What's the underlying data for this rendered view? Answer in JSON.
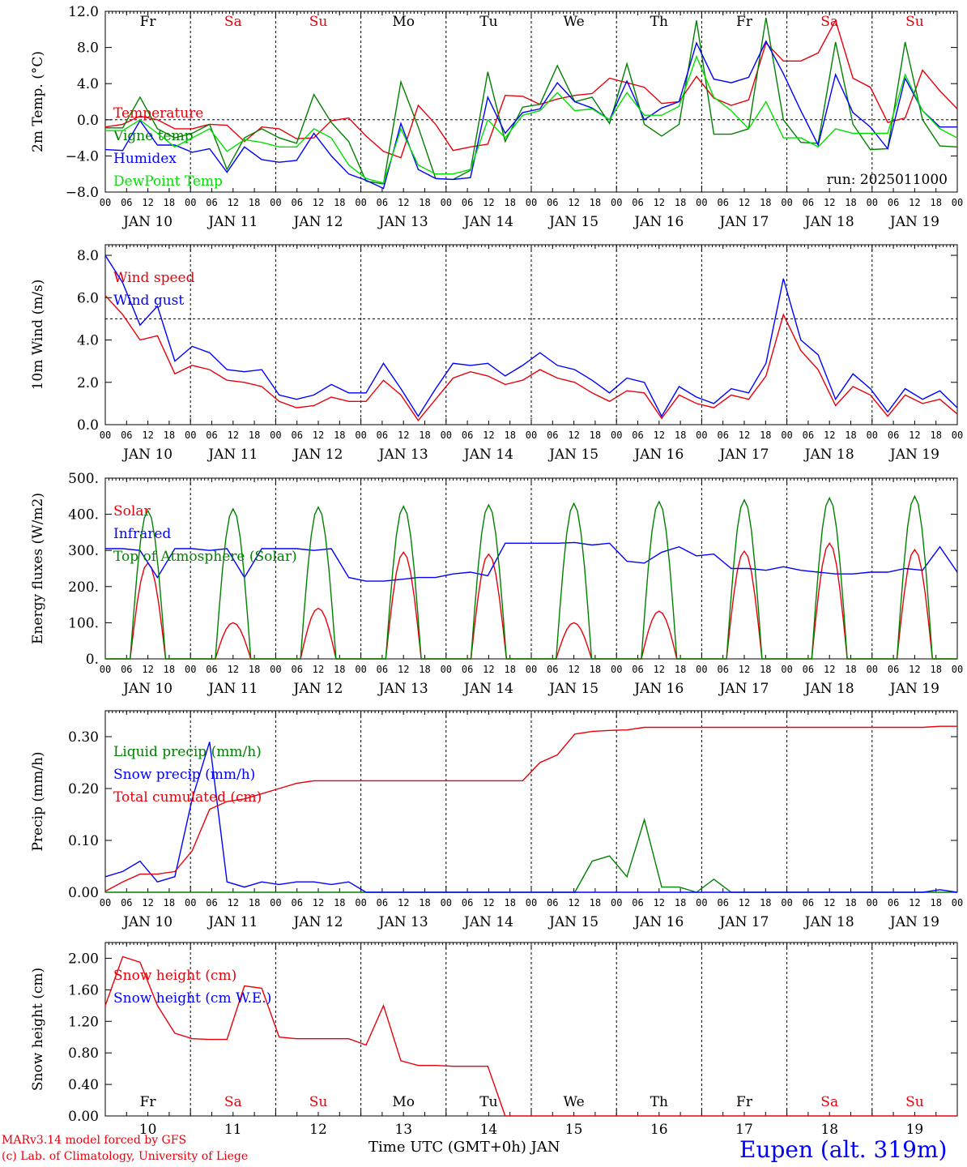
{
  "colors": {
    "red": "#e8000b",
    "green": "#008000",
    "blue": "#0000ff",
    "lime": "#00e000",
    "black": "#000000"
  },
  "weekdays": [
    "Fr",
    "Sa",
    "Su",
    "Mo",
    "Tu",
    "We",
    "Th",
    "Fr",
    "Sa",
    "Su"
  ],
  "weekday_colors": [
    "black",
    "red",
    "red",
    "black",
    "black",
    "black",
    "black",
    "black",
    "red",
    "red"
  ],
  "dates": [
    "JAN 10",
    "JAN 11",
    "JAN 12",
    "JAN 13",
    "JAN 14",
    "JAN 15",
    "JAN 16",
    "JAN 17",
    "JAN 18",
    "JAN 19"
  ],
  "hour_ticks": [
    "00",
    "06",
    "12",
    "18"
  ],
  "day_numbers": [
    "10",
    "11",
    "12",
    "13",
    "14",
    "15",
    "16",
    "17",
    "18",
    "19"
  ],
  "footer": {
    "model": "MARv3.14 model forced by GFS",
    "lab": "(c) Lab. of Climatology, University of Liege",
    "xlabel": "Time UTC (GMT+0h) JAN",
    "station": "Eupen (alt. 319m)"
  },
  "chart_data": [
    {
      "type": "line",
      "ylabel": "2m Temp. (°C)",
      "ylim": [
        -8,
        12
      ],
      "yticks": [
        "12.0",
        "8.0",
        "4.0",
        "0.0",
        "−4.0",
        "−8.0"
      ],
      "annotation": "run: 2025011000",
      "x_hours": "0..240 step 6",
      "series": [
        {
          "name": "Temperature",
          "color": "red",
          "values": [
            -0.8,
            -0.5,
            0.4,
            0.0,
            -1.0,
            -1.0,
            -0.5,
            -0.6,
            -2.4,
            -0.8,
            -1.0,
            -2.1,
            -2.0,
            -0.1,
            0.2,
            -1.8,
            -3.5,
            -4.2,
            1.6,
            -0.5,
            -3.4,
            -3.0,
            -2.7,
            2.7,
            2.6,
            1.7,
            2.3,
            2.7,
            2.9,
            4.6,
            4.1,
            3.6,
            1.8,
            2.0,
            4.8,
            2.4,
            1.6,
            2.2,
            8.5,
            6.5,
            6.5,
            7.4,
            11.0,
            4.6,
            3.6,
            -0.3,
            0.2,
            5.5,
            3.2,
            1.2
          ]
        },
        {
          "name": "Vigne temp",
          "color": "green",
          "values": [
            -0.9,
            -0.9,
            2.5,
            -1.0,
            -2.0,
            -1.5,
            -0.5,
            -5.5,
            -2.0,
            -1.0,
            -2.0,
            -2.6,
            2.8,
            -0.3,
            -2.4,
            -6.8,
            -7.1,
            4.2,
            -0.8,
            -6.5,
            -6.6,
            -5.6,
            5.3,
            -2.4,
            1.4,
            1.7,
            6.0,
            2.0,
            2.5,
            -0.4,
            6.2,
            -0.5,
            -1.8,
            -0.5,
            11.0,
            -1.6,
            -1.6,
            -1.0,
            11.3,
            0.0,
            -2.5,
            -2.6,
            8.6,
            -0.5,
            -3.3,
            -3.2,
            8.6,
            0.0,
            -2.9,
            -3.0
          ]
        },
        {
          "name": "Humidex",
          "color": "blue",
          "values": [
            -3.3,
            -3.4,
            -0.1,
            -2.8,
            -2.8,
            -3.6,
            -3.2,
            -5.8,
            -3.0,
            -4.4,
            -4.7,
            -4.5,
            -1.5,
            -4.0,
            -6.0,
            -6.7,
            -7.6,
            -0.4,
            -5.5,
            -6.5,
            -6.6,
            -6.4,
            2.5,
            -1.5,
            0.8,
            1.2,
            4.1,
            2.0,
            1.3,
            0.0,
            4.3,
            0.0,
            1.3,
            2.0,
            8.5,
            4.5,
            4.1,
            4.7,
            8.7,
            5.1,
            1.0,
            -2.8,
            5.0,
            0.8,
            -0.8,
            -3.2,
            4.6,
            1.0,
            -0.8,
            -0.8
          ]
        },
        {
          "name": "DewPoint Temp",
          "color": "lime",
          "values": [
            -1.2,
            -1.2,
            0.0,
            -1.5,
            -3.0,
            -2.0,
            -1.0,
            -3.5,
            -2.2,
            -2.5,
            -3.0,
            -3.0,
            -1.0,
            -2.0,
            -5.0,
            -6.5,
            -7.0,
            -1.0,
            -5.0,
            -6.0,
            -6.0,
            -5.5,
            0.0,
            -2.0,
            0.5,
            1.0,
            3.0,
            1.0,
            1.2,
            0.0,
            3.0,
            0.5,
            0.5,
            1.5,
            7.0,
            2.5,
            1.0,
            -1.0,
            2.0,
            -2.0,
            -2.0,
            -3.0,
            -1.0,
            -1.5,
            -1.5,
            -1.5,
            5.0,
            1.0,
            -1.0,
            -2.0
          ]
        }
      ],
      "hline": 0,
      "legend_position": "left"
    },
    {
      "type": "line",
      "ylabel": "10m Wind (m/s)",
      "ylim": [
        0,
        8.5
      ],
      "yticks": [
        "8.0",
        "6.0",
        "4.0",
        "2.0",
        "0.0"
      ],
      "hline": 5,
      "series": [
        {
          "name": "Wind speed",
          "color": "red",
          "values": [
            6.1,
            5.2,
            4.0,
            4.2,
            2.4,
            2.8,
            2.6,
            2.1,
            2.0,
            1.8,
            1.1,
            0.8,
            0.9,
            1.3,
            1.1,
            1.1,
            2.1,
            1.4,
            0.2,
            1.2,
            2.2,
            2.5,
            2.3,
            1.9,
            2.1,
            2.6,
            2.2,
            2.0,
            1.5,
            1.1,
            1.6,
            1.5,
            0.3,
            1.4,
            1.0,
            0.8,
            1.4,
            1.2,
            2.3,
            5.2,
            3.5,
            2.6,
            0.9,
            1.8,
            1.4,
            0.4,
            1.4,
            1.0,
            1.2,
            0.5
          ]
        },
        {
          "name": "Wind gust",
          "color": "blue",
          "values": [
            8.0,
            6.7,
            4.7,
            5.6,
            3.0,
            3.7,
            3.4,
            2.6,
            2.5,
            2.6,
            1.4,
            1.2,
            1.4,
            1.9,
            1.5,
            1.5,
            2.9,
            1.7,
            0.4,
            1.7,
            2.9,
            2.8,
            2.9,
            2.3,
            2.8,
            3.4,
            2.8,
            2.6,
            2.1,
            1.5,
            2.2,
            2.0,
            0.4,
            1.8,
            1.3,
            1.0,
            1.7,
            1.5,
            2.9,
            6.9,
            4.0,
            3.3,
            1.2,
            2.4,
            1.7,
            0.6,
            1.7,
            1.2,
            1.6,
            0.8
          ]
        }
      ],
      "legend_position": "top-left"
    },
    {
      "type": "line",
      "ylabel": "Energy fluxes (W/m2)",
      "ylim": [
        0,
        500
      ],
      "yticks": [
        "500.",
        "400.",
        "300.",
        "200.",
        "100.",
        "0."
      ],
      "series": [
        {
          "name": "Solar",
          "color": "red",
          "daily_peaks": [
            265,
            100,
            140,
            295,
            290,
            100,
            132,
            298,
            320,
            302
          ]
        },
        {
          "name": "Infrared",
          "color": "blue",
          "values": [
            305,
            305,
            300,
            225,
            305,
            305,
            300,
            305,
            225,
            305,
            305,
            305,
            300,
            305,
            225,
            215,
            215,
            220,
            225,
            225,
            235,
            240,
            230,
            320,
            320,
            320,
            320,
            322,
            315,
            320,
            270,
            265,
            295,
            310,
            285,
            290,
            250,
            250,
            245,
            255,
            245,
            240,
            235,
            235,
            240,
            240,
            250,
            245,
            310,
            240
          ]
        },
        {
          "name": "Top of Atmosphere (Solar)",
          "color": "green",
          "daily_peaks": [
            410,
            415,
            420,
            422,
            426,
            430,
            435,
            440,
            445,
            450
          ]
        }
      ],
      "legend_position": "top-left"
    },
    {
      "type": "line",
      "ylabel": "Precip (mm/h)",
      "ylim": [
        0,
        0.35
      ],
      "yticks": [
        "0.30",
        "0.20",
        "0.10",
        "0.00"
      ],
      "series": [
        {
          "name": "Liquid precip (mm/h)",
          "color": "green",
          "values": [
            0,
            0,
            0,
            0,
            0,
            0,
            0,
            0,
            0,
            0,
            0,
            0,
            0,
            0,
            0,
            0,
            0,
            0,
            0,
            0,
            0,
            0,
            0,
            0,
            0,
            0,
            0,
            0,
            0.06,
            0.07,
            0.03,
            0.14,
            0.01,
            0.01,
            0.0,
            0.025,
            0,
            0,
            0,
            0,
            0,
            0,
            0,
            0,
            0,
            0,
            0,
            0,
            0,
            0
          ]
        },
        {
          "name": "Snow precip (mm/h)",
          "color": "blue",
          "values": [
            0.03,
            0.04,
            0.06,
            0.02,
            0.03,
            0.18,
            0.29,
            0.02,
            0.01,
            0.02,
            0.015,
            0.02,
            0.02,
            0.015,
            0.02,
            0.0,
            0,
            0,
            0,
            0,
            0,
            0,
            0,
            0,
            0,
            0,
            0,
            0,
            0,
            0,
            0,
            0,
            0,
            0,
            0,
            0,
            0,
            0,
            0,
            0,
            0,
            0,
            0,
            0,
            0,
            0,
            0,
            0,
            0.005,
            0
          ]
        },
        {
          "name": "Total cumulated (cm)",
          "color": "red",
          "values": [
            0.002,
            0.02,
            0.035,
            0.035,
            0.04,
            0.08,
            0.16,
            0.175,
            0.18,
            0.19,
            0.2,
            0.21,
            0.215,
            0.215,
            0.215,
            0.215,
            0.215,
            0.215,
            0.215,
            0.215,
            0.215,
            0.215,
            0.215,
            0.215,
            0.215,
            0.25,
            0.265,
            0.305,
            0.31,
            0.312,
            0.313,
            0.318,
            0.318,
            0.318,
            0.318,
            0.318,
            0.318,
            0.318,
            0.318,
            0.318,
            0.318,
            0.318,
            0.318,
            0.318,
            0.318,
            0.318,
            0.318,
            0.318,
            0.32,
            0.32
          ]
        }
      ],
      "legend_position": "top-left"
    },
    {
      "type": "line",
      "ylabel": "Snow height (cm)",
      "ylim": [
        0,
        2.2
      ],
      "yticks": [
        "2.00",
        "1.60",
        "1.20",
        "0.80",
        "0.40",
        "0.00"
      ],
      "series": [
        {
          "name": "Snow height (cm)",
          "color": "red",
          "values": [
            1.4,
            2.02,
            1.95,
            1.4,
            1.05,
            0.98,
            0.97,
            0.97,
            1.65,
            1.62,
            1.0,
            0.98,
            0.98,
            0.98,
            0.98,
            0.9,
            1.4,
            0.7,
            0.64,
            0.64,
            0.63,
            0.63,
            0.63,
            0.0,
            0,
            0,
            0,
            0,
            0,
            0,
            0,
            0,
            0,
            0,
            0,
            0,
            0,
            0,
            0,
            0,
            0,
            0,
            0,
            0,
            0,
            0,
            0,
            0,
            0,
            0
          ]
        },
        {
          "name": "Snow height (cm W.E.)",
          "color": "blue",
          "values": []
        }
      ],
      "legend_position": "top-left"
    }
  ]
}
